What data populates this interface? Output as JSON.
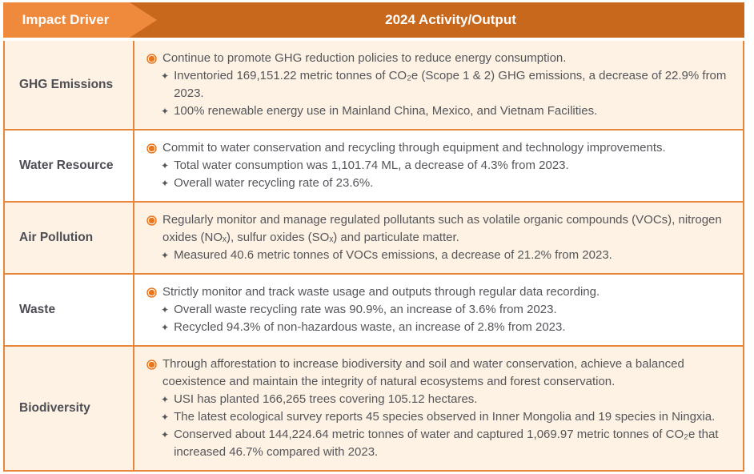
{
  "header": {
    "impact_driver": "Impact Driver",
    "activity_output": "2024 Activity/Output"
  },
  "icons": {
    "main_bullet": "ring-dot",
    "sub_bullet_glyph": "✦"
  },
  "colors": {
    "header_left_bg": "#EF8A3C",
    "header_right_bg": "#C8681C",
    "border": "#E8863C",
    "row_alt_bg": "#FDF2E3",
    "row_bg": "#FFFFFF",
    "body_text": "#55565B",
    "driver_label": "#4D4E55",
    "bullet": "#E87722",
    "header_text": "#FFFFFF"
  },
  "rows": [
    {
      "driver": "GHG Emissions",
      "items": [
        {
          "type": "main",
          "text": "Continue to promote GHG reduction policies to reduce energy consumption."
        },
        {
          "type": "sub",
          "text": "Inventoried 169,151.22 metric tonnes of CO₂e (Scope 1 & 2) GHG emissions, a decrease of 22.9% from 2023."
        },
        {
          "type": "sub",
          "text": "100% renewable energy use in Mainland China, Mexico, and Vietnam Facilities."
        }
      ]
    },
    {
      "driver": "Water Resource",
      "items": [
        {
          "type": "main",
          "text": "Commit to water conservation and recycling through equipment and technology improvements."
        },
        {
          "type": "sub",
          "text": "Total water consumption was 1,101.74 ML, a decrease of 4.3% from 2023."
        },
        {
          "type": "sub",
          "text": "Overall water recycling rate of 23.6%."
        }
      ]
    },
    {
      "driver": "Air Pollution",
      "items": [
        {
          "type": "main",
          "text": "Regularly monitor and manage regulated pollutants such as volatile organic compounds (VOCs), nitrogen oxides (NOₓ), sulfur oxides (SOₓ) and particulate matter."
        },
        {
          "type": "sub",
          "text": "Measured 40.6 metric tonnes of VOCs emissions, a decrease of 21.2% from 2023."
        }
      ]
    },
    {
      "driver": "Waste",
      "items": [
        {
          "type": "main",
          "text": "Strictly monitor and track waste usage and outputs through regular data recording."
        },
        {
          "type": "sub",
          "text": "Overall waste recycling rate was 90.9%, an increase of 3.6% from 2023."
        },
        {
          "type": "sub",
          "text": "Recycled 94.3% of non-hazardous waste, an increase of 2.8% from 2023."
        }
      ]
    },
    {
      "driver": "Biodiversity",
      "items": [
        {
          "type": "main",
          "text": "Through afforestation to increase biodiversity and soil and water conservation, achieve a balanced coexistence and maintain the integrity of natural ecosystems and forest conservation."
        },
        {
          "type": "sub",
          "text": "USI has planted 166,265 trees covering 105.12 hectares."
        },
        {
          "type": "sub",
          "text": "The latest ecological survey reports 45 species observed in Inner Mongolia and 19 species in Ningxia."
        },
        {
          "type": "sub",
          "text": "Conserved about 144,224.64 metric tonnes of water and captured 1,069.97 metric tonnes of CO₂e that increased 46.7% compared with 2023."
        }
      ]
    }
  ]
}
